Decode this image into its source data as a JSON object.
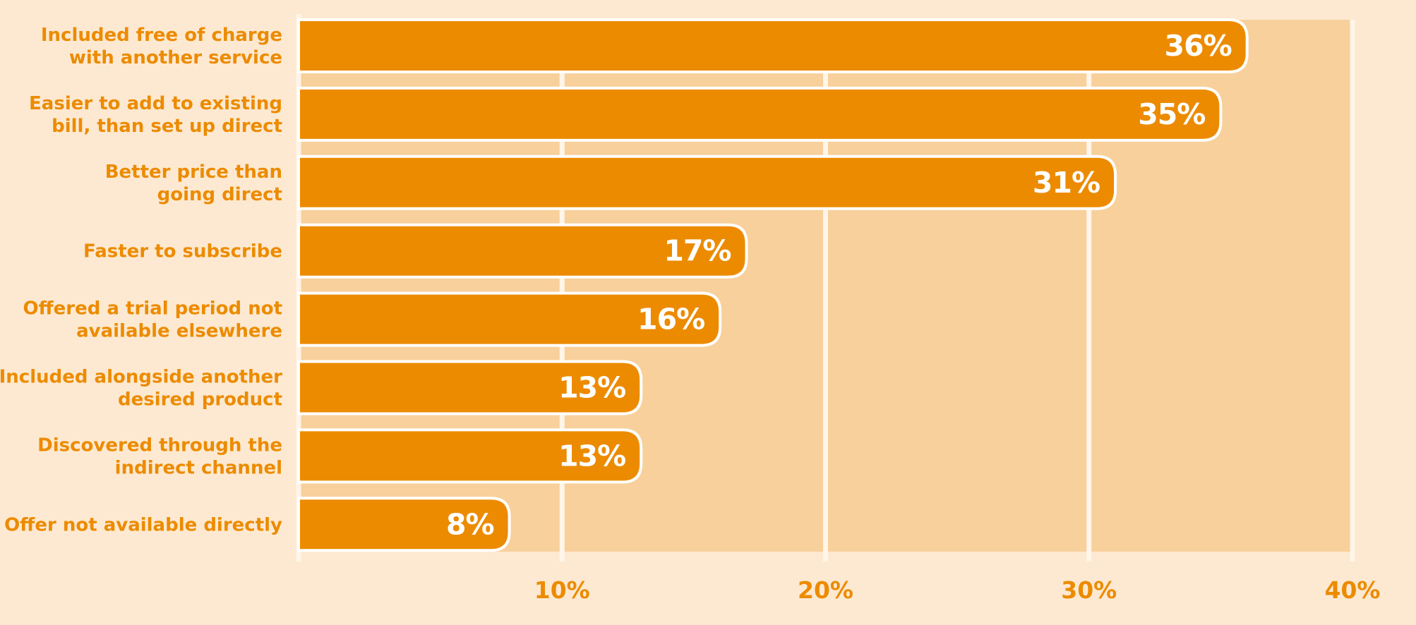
{
  "chart_data": {
    "type": "bar",
    "orientation": "horizontal",
    "categories": [
      [
        "Included free of charge",
        "with another service"
      ],
      [
        "Easier to add to existing",
        "bill, than set up direct"
      ],
      [
        "Better price than",
        "going direct"
      ],
      [
        "Faster to subscribe"
      ],
      [
        "Offered a trial period not",
        "available elsewhere"
      ],
      [
        "Included alongside another",
        "desired product"
      ],
      [
        "Discovered through the",
        "indirect  channel"
      ],
      [
        "Offer not available directly"
      ]
    ],
    "values": [
      36,
      35,
      31,
      17,
      16,
      13,
      13,
      8
    ],
    "value_labels": [
      "36%",
      "35%",
      "31%",
      "17%",
      "16%",
      "13%",
      "13%",
      "8%"
    ],
    "xlim": [
      0,
      40
    ],
    "xticks": [
      10,
      20,
      30,
      40
    ],
    "xtick_labels": [
      "10%",
      "20%",
      "30%",
      "40%"
    ],
    "grid": true,
    "colors": {
      "background": "#fde9d1",
      "plot_area": "#f8d09b",
      "bar": "#ec8b00",
      "bar_stroke": "#ffffff",
      "label": "#ec8b00",
      "value_label": "#ffffff",
      "gridline": "#fff5e8"
    }
  }
}
